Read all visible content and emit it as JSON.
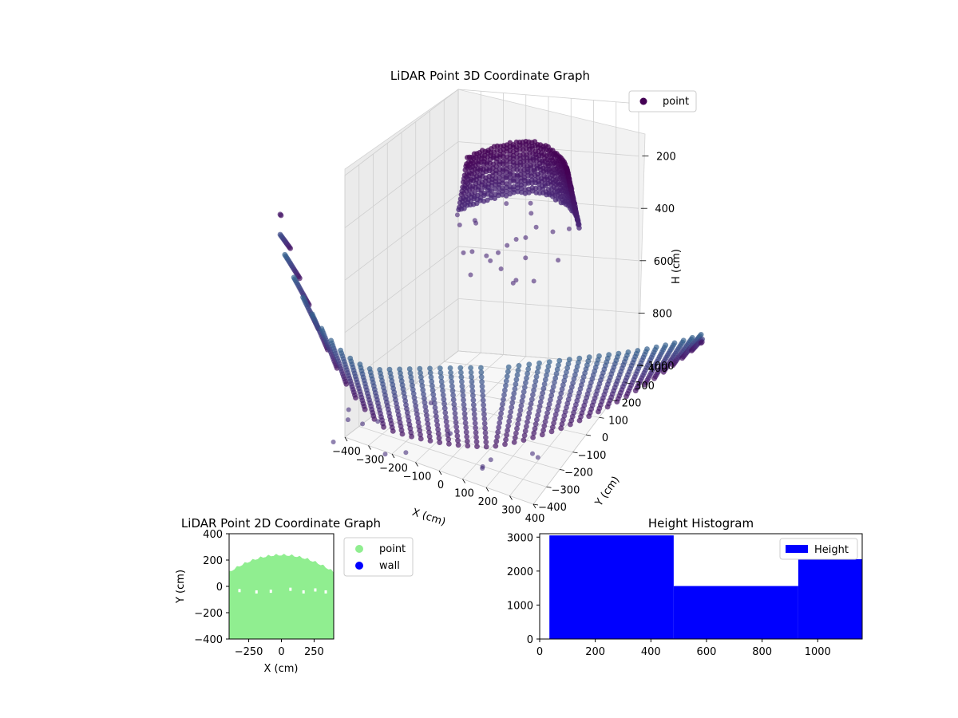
{
  "chart_data": [
    {
      "type": "scatter",
      "projection": "3d",
      "title": "LiDAR Point 3D Coordinate Graph",
      "xlabel": "X (cm)",
      "ylabel": "Y (cm)",
      "zlabel": "H (cm)",
      "xlim": [
        -400,
        400
      ],
      "ylim": [
        -400,
        400
      ],
      "zlim": [
        0,
        1000
      ],
      "z_inverted": true,
      "x_ticks": [
        "−400",
        "−300",
        "−200",
        "−100",
        "0",
        "100",
        "200",
        "300",
        "400"
      ],
      "y_ticks": [
        "−400",
        "−300",
        "−200",
        "−100",
        "0",
        "100",
        "200",
        "300",
        "400"
      ],
      "z_ticks": [
        "0",
        "200",
        "400",
        "600",
        "800",
        "1000"
      ],
      "grid": true,
      "legend": {
        "position": "top-right",
        "entries": [
          {
            "label": "point",
            "color": "#440154"
          }
        ]
      },
      "colormap": "viridis",
      "series": [
        {
          "name": "point",
          "description_ref": "ceiling arc near H≈100–300, floor bowl near H≈900–1000"
        }
      ]
    },
    {
      "type": "scatter",
      "title": "LiDAR Point 2D Coordinate Graph",
      "xlabel": "X (cm)",
      "ylabel": "Y (cm)",
      "xlim": [
        -400,
        400
      ],
      "ylim": [
        -400,
        400
      ],
      "x_ticks": [
        "−250",
        "0",
        "250"
      ],
      "y_ticks": [
        "−400",
        "−200",
        "0",
        "200",
        "400"
      ],
      "legend": {
        "position": "outside-right",
        "entries": [
          {
            "label": "point",
            "color": "#90ee90"
          },
          {
            "label": "wall",
            "color": "#0000ff"
          }
        ]
      },
      "series": [
        {
          "name": "point",
          "color": "#90ee90",
          "region": "filled area X −400..400, Y −400..~240"
        },
        {
          "name": "wall",
          "color": "#0000ff",
          "points": []
        }
      ]
    },
    {
      "type": "bar",
      "title": "Height Histogram",
      "xlabel": "",
      "ylabel": "",
      "xlim": [
        0,
        1160
      ],
      "ylim": [
        0,
        3100
      ],
      "x_ticks": [
        "0",
        "200",
        "400",
        "600",
        "800",
        "1000"
      ],
      "y_ticks": [
        "0",
        "1000",
        "2000",
        "3000"
      ],
      "legend": {
        "position": "top-right",
        "entries": [
          {
            "label": "Height",
            "color": "#0000ff"
          }
        ]
      },
      "bins": [
        {
          "from": 35,
          "to": 482,
          "count": 3050
        },
        {
          "from": 482,
          "to": 930,
          "count": 1560
        },
        {
          "from": 930,
          "to": 1160,
          "count": 2350
        }
      ],
      "color": "#0000ff"
    }
  ]
}
